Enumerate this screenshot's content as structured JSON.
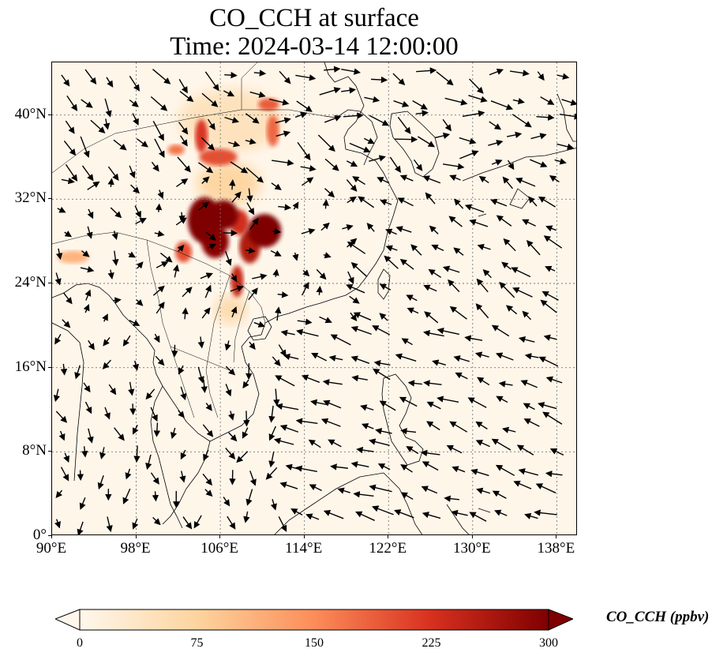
{
  "title": {
    "line1": "CO_CCH at surface",
    "line2": "Time: 2024-03-14 12:00:00"
  },
  "map": {
    "projection": "PlateCarree",
    "lon_range": [
      90,
      140
    ],
    "lat_range": [
      0,
      45
    ],
    "gridlines": "dotted",
    "lat_ticks": [
      {
        "value": 0,
        "label": "0°"
      },
      {
        "value": 8,
        "label": "8°N"
      },
      {
        "value": 16,
        "label": "16°N"
      },
      {
        "value": 24,
        "label": "24°N"
      },
      {
        "value": 32,
        "label": "32°N"
      },
      {
        "value": 40,
        "label": "40°N"
      }
    ],
    "lon_ticks": [
      {
        "value": 90,
        "label": "90°E"
      },
      {
        "value": 98,
        "label": "98°E"
      },
      {
        "value": 106,
        "label": "106°E"
      },
      {
        "value": 114,
        "label": "114°E"
      },
      {
        "value": 122,
        "label": "122°E"
      },
      {
        "value": 130,
        "label": "130°E"
      },
      {
        "value": 138,
        "label": "138°E"
      }
    ],
    "plume_cells": [
      {
        "lon": 104.5,
        "lat": 30.0,
        "rlon": 1.6,
        "rlat": 2.2,
        "value": 300
      },
      {
        "lon": 106.3,
        "lat": 30.5,
        "rlon": 1.4,
        "rlat": 1.4,
        "value": 300
      },
      {
        "lon": 105.5,
        "lat": 28.0,
        "rlon": 1.3,
        "rlat": 1.6,
        "value": 290
      },
      {
        "lon": 110.2,
        "lat": 29.0,
        "rlon": 1.6,
        "rlat": 1.6,
        "value": 300
      },
      {
        "lon": 108.8,
        "lat": 27.5,
        "rlon": 1.0,
        "rlat": 1.6,
        "value": 260
      },
      {
        "lon": 107.8,
        "lat": 29.8,
        "rlon": 0.9,
        "rlat": 1.2,
        "value": 230
      },
      {
        "lon": 107.6,
        "lat": 24.2,
        "rlon": 0.6,
        "rlat": 1.5,
        "value": 240
      },
      {
        "lon": 102.5,
        "lat": 27.0,
        "rlon": 0.8,
        "rlat": 1.0,
        "value": 200
      },
      {
        "lon": 105.8,
        "lat": 36.0,
        "rlon": 1.8,
        "rlat": 0.8,
        "value": 200
      },
      {
        "lon": 104.2,
        "lat": 38.0,
        "rlon": 0.6,
        "rlat": 1.6,
        "value": 220
      },
      {
        "lon": 101.8,
        "lat": 36.7,
        "rlon": 0.8,
        "rlat": 0.5,
        "value": 170
      },
      {
        "lon": 111.0,
        "lat": 38.5,
        "rlon": 0.6,
        "rlat": 1.5,
        "value": 180
      },
      {
        "lon": 110.6,
        "lat": 41.0,
        "rlon": 1.0,
        "rlat": 0.6,
        "value": 190
      },
      {
        "lon": 92.0,
        "lat": 26.5,
        "rlon": 1.5,
        "rlat": 0.6,
        "value": 110
      },
      {
        "lon": 107.0,
        "lat": 21.5,
        "rlon": 1.5,
        "rlat": 1.4,
        "value": 60
      },
      {
        "lon": 106.8,
        "lat": 33.5,
        "rlon": 3.0,
        "rlat": 2.0,
        "value": 70
      },
      {
        "lon": 107.0,
        "lat": 39.5,
        "rlon": 5.0,
        "rlat": 3.0,
        "value": 45
      }
    ],
    "wind_barbs": "black quiver arrows (~8px stride grid)"
  },
  "colorbar": {
    "label": "CO_CCH (ppbv)",
    "min": 0,
    "max": 300,
    "extend": "both",
    "cmap": "OrRd",
    "ticks": [
      "0",
      "75",
      "150",
      "225",
      "300"
    ],
    "colors": [
      "#fff7ec",
      "#fdd49e",
      "#fc8d59",
      "#d7301f",
      "#7f0000"
    ]
  }
}
